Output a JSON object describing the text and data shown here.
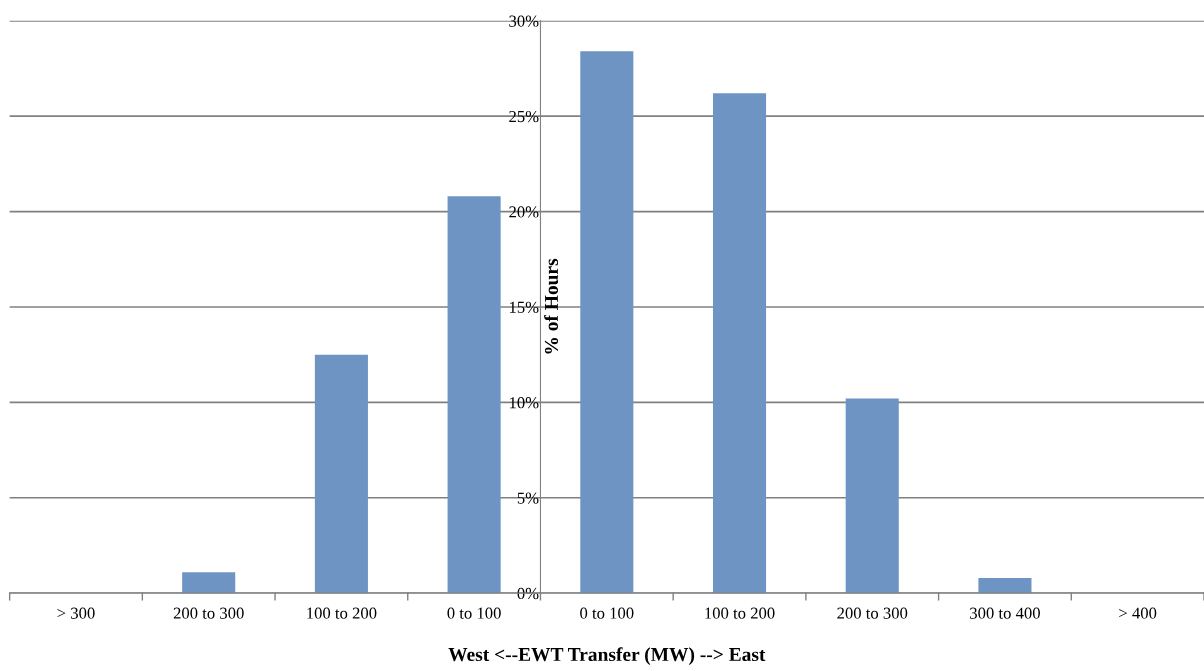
{
  "chart_data": {
    "type": "bar",
    "xlabel": "West <--EWT Transfer (MW) --> East",
    "ylabel": "% of Hours",
    "categories": [
      "> 300",
      "200 to 300",
      "100 to 200",
      "0 to 100",
      "0 to 100",
      "100 to 200",
      "200 to 300",
      "300 to 400",
      "> 400"
    ],
    "values": [
      0,
      1.1,
      12.5,
      20.8,
      28.4,
      26.2,
      10.2,
      0.8,
      0
    ],
    "color": "#6e94c4",
    "ylim": [
      0,
      30
    ],
    "yticks": [
      {
        "value": 0,
        "label": "0%"
      },
      {
        "value": 5,
        "label": "5%"
      },
      {
        "value": 10,
        "label": "10%"
      },
      {
        "value": 15,
        "label": "15%"
      },
      {
        "value": 20,
        "label": "20%"
      },
      {
        "value": 25,
        "label": "25%"
      },
      {
        "value": 30,
        "label": "30%"
      }
    ],
    "grid": "y"
  }
}
